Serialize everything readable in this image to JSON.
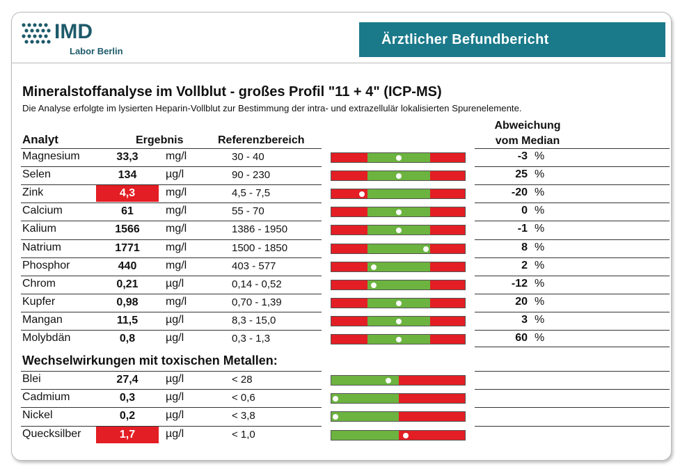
{
  "logo": {
    "name": "IMD",
    "subtitle": "Labor Berlin"
  },
  "banner": "Ärztlicher Befundbericht",
  "title": "Mineralstoffanalyse im Vollblut - großes Profil \"11 + 4\" (ICP-MS)",
  "subtitle": "Die Analyse erfolgte im lysierten Heparin-Vollblut zur Bestimmung der intra- und extrazellulär lokalisierten Spurenelemente.",
  "headers": {
    "analyt": "Analyt",
    "ergebnis": "Ergebnis",
    "referenz": "Referenzbereich",
    "abweichung_line1": "Abweichung",
    "abweichung_line2": "vom Median"
  },
  "colors": {
    "teal": "#1a7a8a",
    "green": "#6cb33f",
    "red": "#e31e24",
    "logo": "#1d5a6a"
  },
  "minerals": [
    {
      "name": "Magnesium",
      "value": "33,3",
      "unit": "mg/l",
      "ref": "30 - 40",
      "deviation": "-3",
      "pct": "%",
      "marker": 0.5,
      "flag": false
    },
    {
      "name": "Selen",
      "value": "134",
      "unit": "µg/l",
      "ref": "90 - 230",
      "deviation": "25",
      "pct": "%",
      "marker": 0.5,
      "flag": false
    },
    {
      "name": "Zink",
      "value": "4,3",
      "unit": "mg/l",
      "ref": "4,5 - 7,5",
      "deviation": "-20",
      "pct": "%",
      "marker": 0.0,
      "flag": true,
      "below": true
    },
    {
      "name": "Calcium",
      "value": "61",
      "unit": "mg/l",
      "ref": "55 - 70",
      "deviation": "0",
      "pct": "%",
      "marker": 0.5,
      "flag": false
    },
    {
      "name": "Kalium",
      "value": "1566",
      "unit": "mg/l",
      "ref": "1386 - 1950",
      "deviation": "-1",
      "pct": "%",
      "marker": 0.5,
      "flag": false
    },
    {
      "name": "Natrium",
      "value": "1771",
      "unit": "mg/l",
      "ref": "1500 - 1850",
      "deviation": "8",
      "pct": "%",
      "marker": 0.93,
      "flag": false
    },
    {
      "name": "Phosphor",
      "value": "440",
      "unit": "mg/l",
      "ref": "403 - 577",
      "deviation": "2",
      "pct": "%",
      "marker": 0.1,
      "flag": false
    },
    {
      "name": "Chrom",
      "value": "0,21",
      "unit": "µg/l",
      "ref": "0,14 - 0,52",
      "deviation": "-12",
      "pct": "%",
      "marker": 0.1,
      "flag": false
    },
    {
      "name": "Kupfer",
      "value": "0,98",
      "unit": "mg/l",
      "ref": "0,70 - 1,39",
      "deviation": "20",
      "pct": "%",
      "marker": 0.5,
      "flag": false
    },
    {
      "name": "Mangan",
      "value": "11,5",
      "unit": "µg/l",
      "ref": "8,3 - 15,0",
      "deviation": "3",
      "pct": "%",
      "marker": 0.5,
      "flag": false
    },
    {
      "name": "Molybdän",
      "value": "0,8",
      "unit": "µg/l",
      "ref": "0,3 - 1,3",
      "deviation": "60",
      "pct": "%",
      "marker": 0.5,
      "flag": false
    }
  ],
  "section_toxic": "Wechselwirkungen mit toxischen Metallen:",
  "toxic": [
    {
      "name": "Blei",
      "value": "27,4",
      "unit": "µg/l",
      "ref": "< 28",
      "marker": 0.85,
      "flag": false
    },
    {
      "name": "Cadmium",
      "value": "0,3",
      "unit": "µg/l",
      "ref": "< 0,6",
      "marker": 0.05,
      "flag": false
    },
    {
      "name": "Nickel",
      "value": "0,2",
      "unit": "µg/l",
      "ref": "< 3,8",
      "marker": 0.05,
      "flag": false
    },
    {
      "name": "Quecksilber",
      "value": "1,7",
      "unit": "µg/l",
      "ref": "< 1,0",
      "marker": 0.1,
      "flag": true,
      "above": true
    }
  ]
}
